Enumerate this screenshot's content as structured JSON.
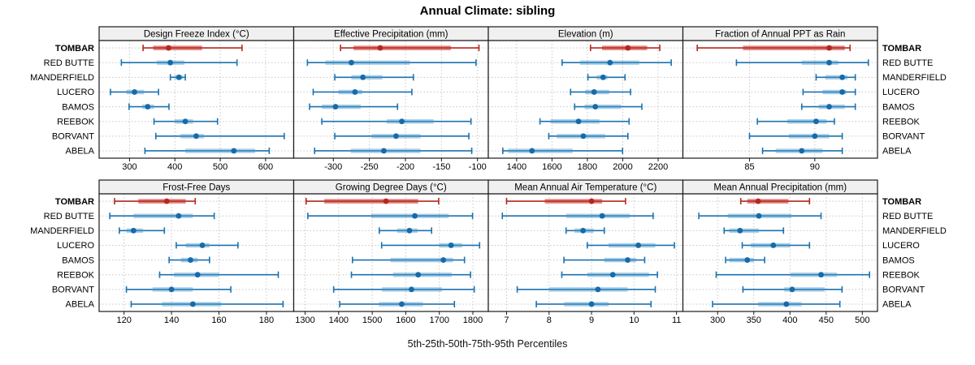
{
  "title": "Annual Climate: sibling",
  "caption": "5th-25th-50th-75th-95th Percentiles",
  "sites": [
    "TOMBAR",
    "RED BUTTE",
    "MANDERFIELD",
    "LUCERO",
    "BAMOS",
    "REEBOK",
    "BORVANT",
    "ABELA"
  ],
  "highlight_site": "TOMBAR",
  "colors": {
    "blue_line": "#1b72b0",
    "blue_band": "rgba(70,150,205,0.45)",
    "blue_dot": "#176aa8",
    "red_line": "#b6271e",
    "red_band": "rgba(196,48,40,0.6)",
    "red_dot": "#b6271e",
    "grid": "#c8c8c8",
    "strip_bg": "#f0f0f0",
    "border": "#1a1a1a",
    "text": "#000000"
  },
  "chart_data": {
    "type": "dot-whisker-percentiles",
    "percentile_levels": [
      5,
      25,
      50,
      75,
      95
    ],
    "legend_position": "none",
    "grid": "dotted",
    "rows_top_to_bottom": [
      "TOMBAR",
      "RED BUTTE",
      "MANDERFIELD",
      "LUCERO",
      "BAMOS",
      "REEBOK",
      "BORVANT",
      "ABELA"
    ],
    "panels": [
      {
        "title": "Design Freeze Index (°C)",
        "grid_row": 0,
        "grid_col": 0,
        "domain": [
          233,
          662
        ],
        "ticks": [
          300,
          400,
          500,
          600
        ],
        "values": {
          "TOMBAR": [
            330,
            352,
            386,
            460,
            548
          ],
          "RED BUTTE": [
            282,
            360,
            390,
            421,
            537
          ],
          "MANDERFIELD": [
            390,
            399,
            409,
            417,
            423
          ],
          "LUCERO": [
            258,
            293,
            311,
            332,
            364
          ],
          "BAMOS": [
            299,
            328,
            340,
            354,
            387
          ],
          "REEBOK": [
            354,
            400,
            423,
            440,
            494
          ],
          "BORVANT": [
            358,
            412,
            447,
            464,
            641
          ],
          "ABELA": [
            334,
            423,
            530,
            577,
            608
          ]
        }
      },
      {
        "title": "Effective Precipitation (mm)",
        "grid_row": 0,
        "grid_col": 1,
        "domain": [
          -355,
          -85
        ],
        "ticks": [
          -300,
          -250,
          -200,
          -150,
          -100
        ],
        "values": {
          "TOMBAR": [
            -290,
            -272,
            -235,
            -137,
            -98
          ],
          "RED BUTTE": [
            -336,
            -311,
            -275,
            -194,
            -102
          ],
          "MANDERFIELD": [
            -298,
            -275,
            -259,
            -232,
            -189
          ],
          "LUCERO": [
            -328,
            -293,
            -270,
            -260,
            -191
          ],
          "BAMOS": [
            -333,
            -316,
            -297,
            -262,
            -211
          ],
          "REEBOK": [
            -316,
            -226,
            -205,
            -161,
            -109
          ],
          "BORVANT": [
            -298,
            -247,
            -213,
            -179,
            -112
          ],
          "ABELA": [
            -326,
            -276,
            -230,
            -179,
            -108
          ]
        }
      },
      {
        "title": "Elevation (m)",
        "grid_row": 0,
        "grid_col": 2,
        "domain": [
          1240,
          2340
        ],
        "ticks": [
          1400,
          1600,
          1800,
          2000,
          2200
        ],
        "values": {
          "TOMBAR": [
            1818,
            1883,
            2029,
            2138,
            2209
          ],
          "RED BUTTE": [
            1657,
            1758,
            1928,
            2093,
            2274
          ],
          "MANDERFIELD": [
            1803,
            1853,
            1889,
            1913,
            2013
          ],
          "LUCERO": [
            1705,
            1788,
            1838,
            1923,
            2044
          ],
          "BAMOS": [
            1728,
            1784,
            1845,
            1991,
            2108
          ],
          "REEBOK": [
            1532,
            1592,
            1750,
            1868,
            2036
          ],
          "BORVANT": [
            1582,
            1627,
            1777,
            1901,
            2029
          ],
          "ABELA": [
            1322,
            1352,
            1487,
            1717,
            1999
          ]
        }
      },
      {
        "title": "Fraction of Annual PPT as Rain",
        "grid_row": 0,
        "grid_col": 3,
        "domain": [
          79.9,
          94.8
        ],
        "ticks": [
          85,
          90
        ],
        "values": {
          "TOMBAR": [
            81.0,
            84.5,
            91.1,
            92.3,
            92.7
          ],
          "RED BUTTE": [
            84.0,
            89.0,
            91.1,
            91.8,
            94.1
          ],
          "MANDERFIELD": [
            90.1,
            90.8,
            92.1,
            92.5,
            93.1
          ],
          "LUCERO": [
            89.1,
            90.6,
            92.1,
            92.4,
            93.1
          ],
          "BAMOS": [
            89.0,
            90.3,
            91.1,
            92.3,
            93.1
          ],
          "REEBOK": [
            85.6,
            87.9,
            90.1,
            90.9,
            91.5
          ],
          "BORVANT": [
            85.0,
            88.0,
            90.0,
            91.1,
            92.1
          ],
          "ABELA": [
            86.0,
            87.0,
            89.0,
            90.6,
            92.1
          ]
        }
      },
      {
        "title": "Frost-Free Days",
        "grid_row": 1,
        "grid_col": 0,
        "domain": [
          109.5,
          191.5
        ],
        "ticks": [
          120,
          140,
          160,
          180
        ],
        "values": {
          "TOMBAR": [
            116,
            126,
            138,
            146,
            150
          ],
          "RED BUTTE": [
            114,
            124,
            143,
            149,
            158
          ],
          "MANDERFIELD": [
            118,
            121,
            124,
            128,
            137
          ],
          "LUCERO": [
            142,
            146,
            153,
            156,
            168
          ],
          "BAMOS": [
            139,
            144,
            148,
            151,
            156
          ],
          "REEBOK": [
            135,
            141,
            151,
            160,
            185
          ],
          "BORVANT": [
            121,
            132,
            140,
            149,
            165
          ],
          "ABELA": [
            123,
            136,
            149,
            161,
            187
          ]
        }
      },
      {
        "title": "Growing Degree Days (°C)",
        "grid_row": 1,
        "grid_col": 1,
        "domain": [
          1266,
          1846
        ],
        "ticks": [
          1300,
          1400,
          1500,
          1600,
          1700,
          1800
        ],
        "values": {
          "TOMBAR": [
            1303,
            1357,
            1541,
            1637,
            1698
          ],
          "RED BUTTE": [
            1308,
            1497,
            1627,
            1728,
            1799
          ],
          "MANDERFIELD": [
            1521,
            1574,
            1611,
            1635,
            1677
          ],
          "LUCERO": [
            1528,
            1700,
            1735,
            1768,
            1820
          ],
          "BAMOS": [
            1441,
            1554,
            1712,
            1741,
            1775
          ],
          "REEBOK": [
            1438,
            1562,
            1637,
            1737,
            1793
          ],
          "BORVANT": [
            1385,
            1529,
            1617,
            1708,
            1804
          ],
          "ABELA": [
            1403,
            1520,
            1588,
            1651,
            1745
          ]
        }
      },
      {
        "title": "Mean Annual Air Temperature (°C)",
        "grid_row": 1,
        "grid_col": 2,
        "domain": [
          6.57,
          11.15
        ],
        "ticks": [
          7,
          8,
          9,
          10,
          11
        ],
        "values": {
          "TOMBAR": [
            7.0,
            7.9,
            9.0,
            9.25,
            9.8
          ],
          "RED BUTTE": [
            6.9,
            8.4,
            9.25,
            9.9,
            10.45
          ],
          "MANDERFIELD": [
            8.4,
            8.6,
            8.8,
            9.05,
            9.3
          ],
          "LUCERO": [
            8.9,
            9.4,
            10.1,
            10.5,
            10.95
          ],
          "BAMOS": [
            8.35,
            9.3,
            9.85,
            10.05,
            10.25
          ],
          "REEBOK": [
            8.3,
            8.9,
            9.5,
            10.35,
            10.55
          ],
          "BORVANT": [
            7.25,
            8.0,
            9.15,
            9.85,
            10.5
          ],
          "ABELA": [
            7.7,
            8.35,
            9.0,
            9.4,
            10.4
          ]
        }
      },
      {
        "title": "Mean Annual Precipitation (mm)",
        "grid_row": 1,
        "grid_col": 3,
        "domain": [
          252,
          521
        ],
        "ticks": [
          300,
          350,
          400,
          450,
          500
        ],
        "values": {
          "TOMBAR": [
            332,
            341,
            356,
            398,
            427
          ],
          "RED BUTTE": [
            274,
            314,
            357,
            402,
            443
          ],
          "MANDERFIELD": [
            309,
            316,
            331,
            357,
            391
          ],
          "LUCERO": [
            334,
            346,
            377,
            400,
            427
          ],
          "BAMOS": [
            311,
            316,
            341,
            350,
            365
          ],
          "REEBOK": [
            298,
            401,
            443,
            465,
            510
          ],
          "BORVANT": [
            335,
            392,
            403,
            448,
            472
          ],
          "ABELA": [
            293,
            356,
            395,
            416,
            469
          ]
        }
      }
    ]
  }
}
